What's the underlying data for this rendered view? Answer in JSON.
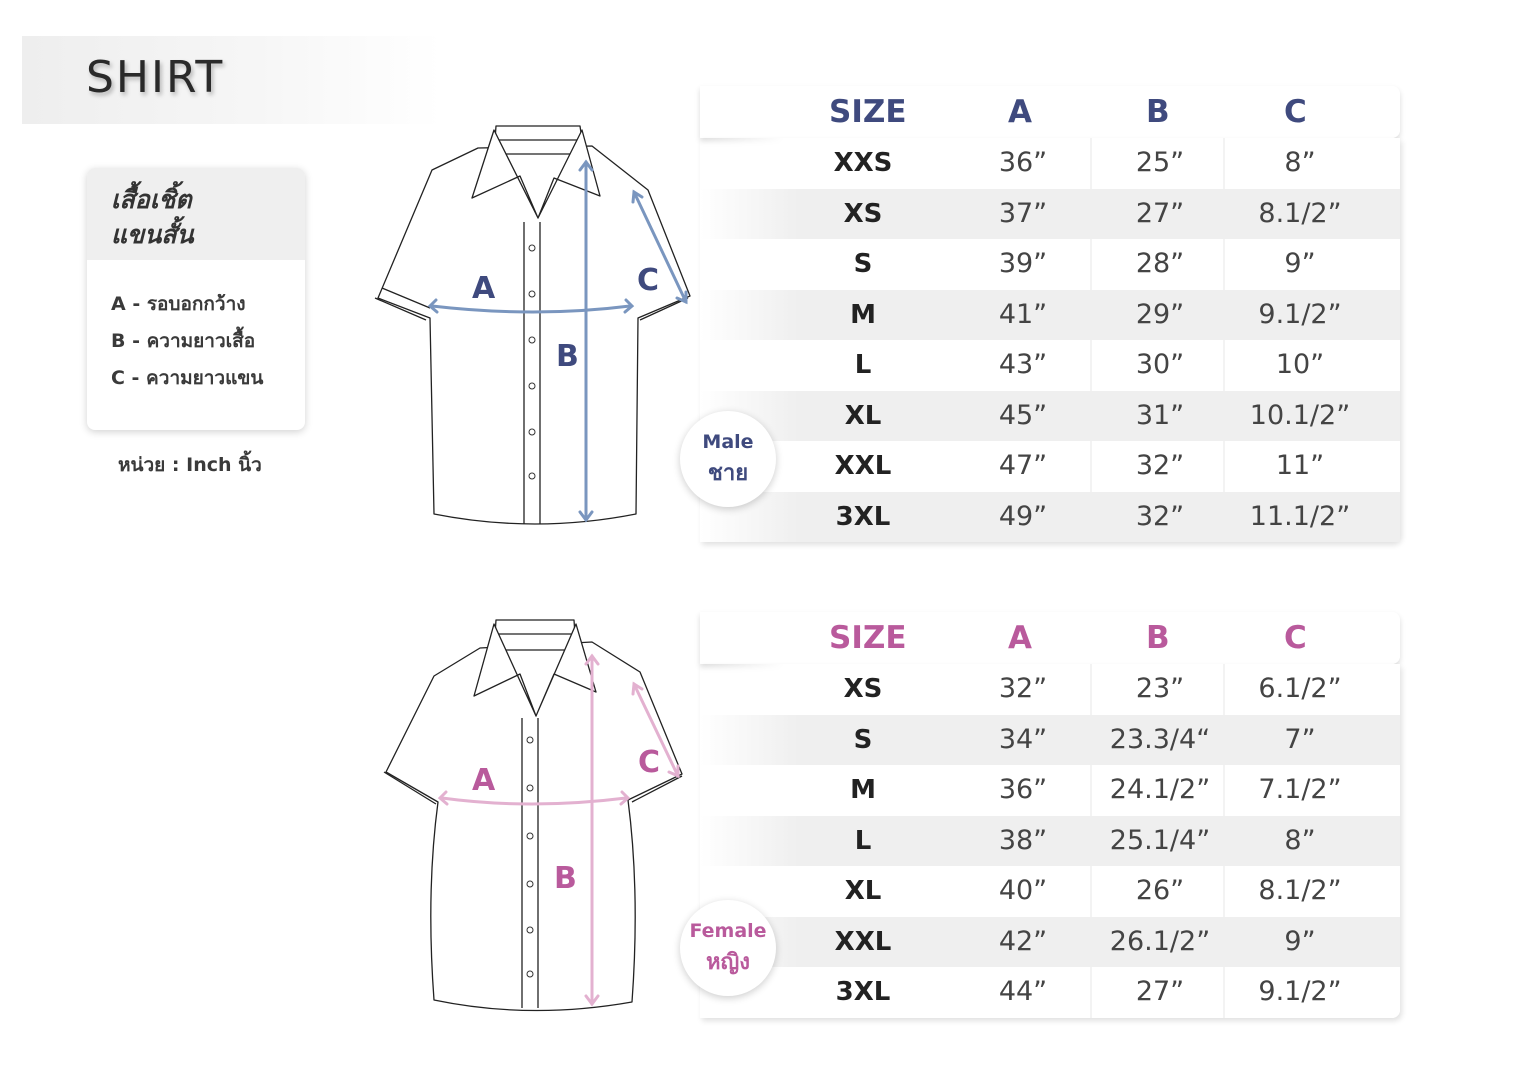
{
  "title": "SHIRT",
  "legend": {
    "heading_line1": "เสื้อเชิ้ต",
    "heading_line2": "แขนสั้น",
    "items": [
      "A - รอบอกกว้าง",
      "B - ความยาวเสื้อ",
      "C - ความยาวแขน"
    ]
  },
  "unit": "หน่วย : Inch นิ้ว",
  "colors": {
    "male_accent": "#3f4a7e",
    "male_arrow": "#7a96bf",
    "female_accent": "#b95a9c",
    "female_arrow": "#e3b1d0"
  },
  "male": {
    "badge_en": "Male",
    "badge_th": "ชาย",
    "diagram_labels": {
      "a": "A",
      "b": "B",
      "c": "C"
    },
    "headers": [
      "SIZE",
      "A",
      "B",
      "C"
    ],
    "rows": [
      [
        "XXS",
        "36”",
        "25”",
        "8”"
      ],
      [
        "XS",
        "37”",
        "27”",
        "8.1/2”"
      ],
      [
        "S",
        "39”",
        "28”",
        "9”"
      ],
      [
        "M",
        "41”",
        "29”",
        "9.1/2”"
      ],
      [
        "L",
        "43”",
        "30”",
        "10”"
      ],
      [
        "XL",
        "45”",
        "31”",
        "10.1/2”"
      ],
      [
        "XXL",
        "47”",
        "32”",
        "11”"
      ],
      [
        "3XL",
        "49”",
        "32”",
        "11.1/2”"
      ]
    ]
  },
  "female": {
    "badge_en": "Female",
    "badge_th": "หญิง",
    "diagram_labels": {
      "a": "A",
      "b": "B",
      "c": "C"
    },
    "headers": [
      "SIZE",
      "A",
      "B",
      "C"
    ],
    "rows": [
      [
        "XS",
        "32”",
        "23”",
        "6.1/2”"
      ],
      [
        "S",
        "34”",
        "23.3/4“",
        "7”"
      ],
      [
        "M",
        "36”",
        "24.1/2”",
        "7.1/2”"
      ],
      [
        "L",
        "38”",
        "25.1/4”",
        "8”"
      ],
      [
        "XL",
        "40”",
        "26”",
        "8.1/2”"
      ],
      [
        "XXL",
        "42”",
        "26.1/2”",
        "9”"
      ],
      [
        "3XL",
        "44”",
        "27”",
        "9.1/2”"
      ]
    ]
  }
}
